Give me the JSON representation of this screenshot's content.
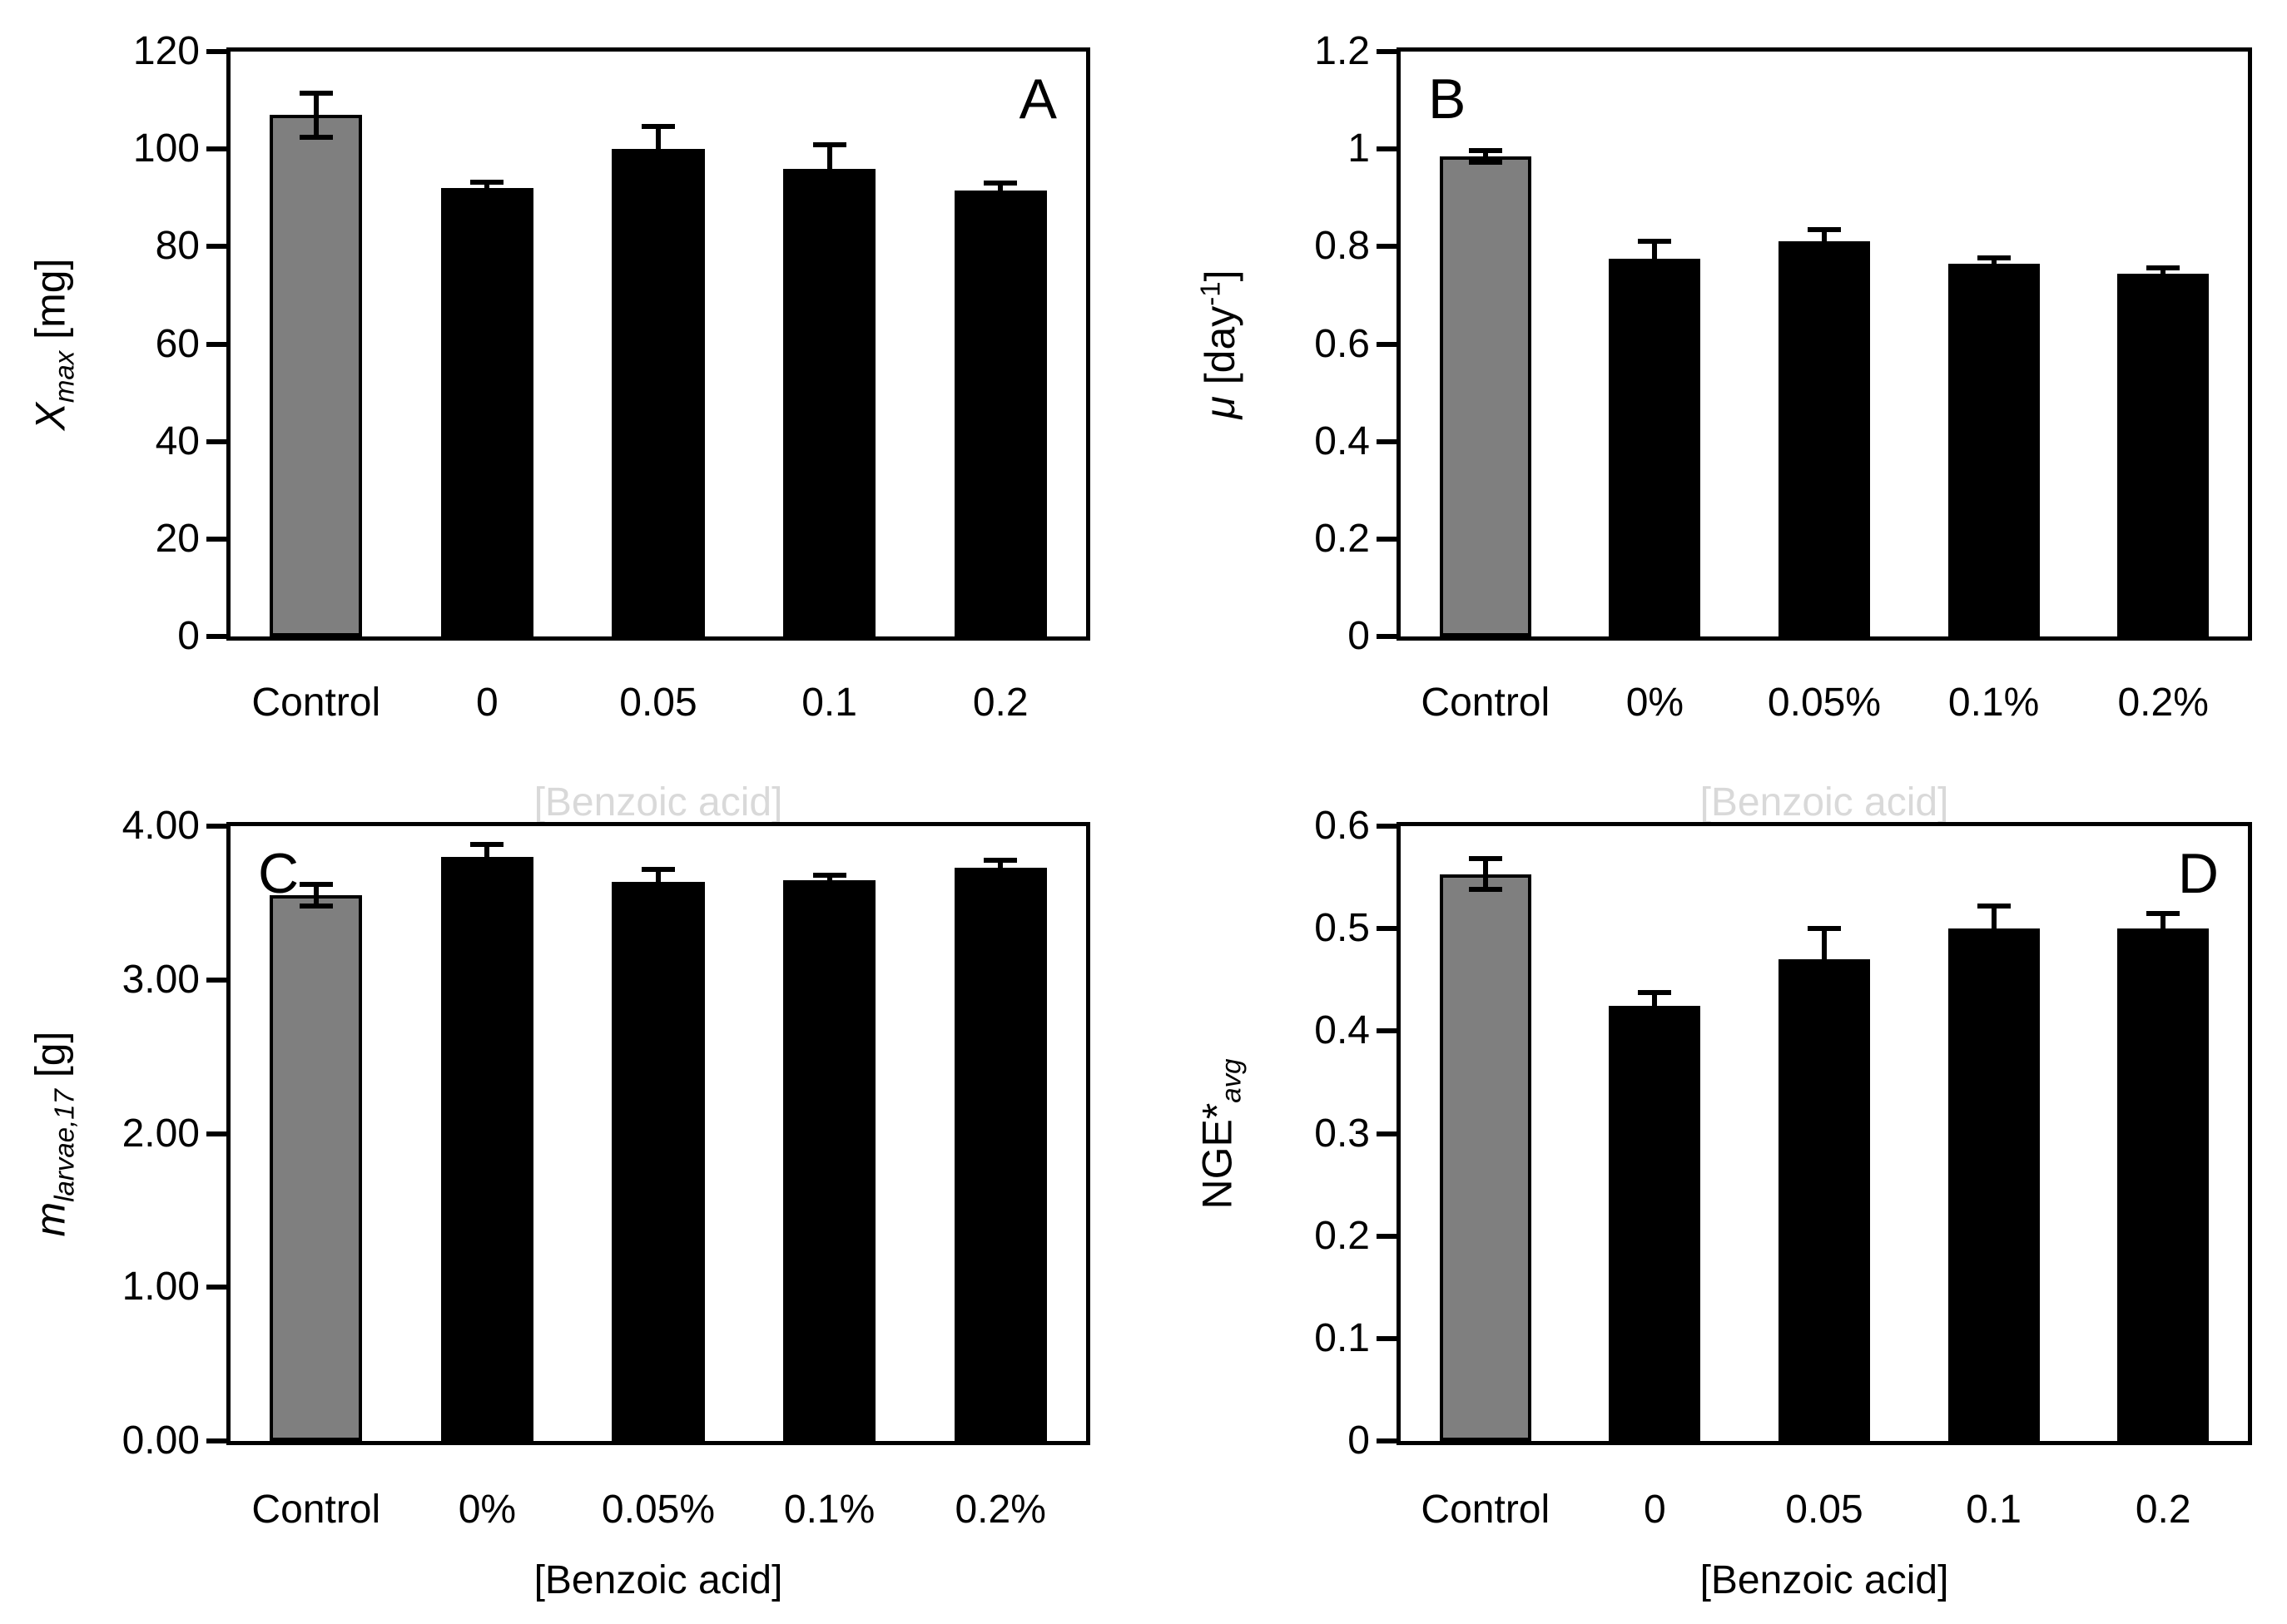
{
  "figure": {
    "background": "#ffffff",
    "style": {
      "control_fill": "#7f7f7f",
      "bar_fill": "#000000",
      "axis_color": "#000000",
      "faded_label_color": "#d9d9d9"
    }
  },
  "chart_data": [
    {
      "id": "A",
      "type": "bar",
      "panel_letter": "A",
      "letter_pos": "top-right",
      "ylabel_segments": [
        {
          "text": "X",
          "italic": true
        },
        {
          "text": "max",
          "italic": true,
          "sub": true
        },
        {
          "text": " [mg]"
        }
      ],
      "ylim": [
        0,
        120
      ],
      "ytick_labels": [
        "0",
        "20",
        "40",
        "60",
        "80",
        "100",
        "120"
      ],
      "categories": [
        "Control",
        "0",
        "0.05",
        "0.1",
        "0.2"
      ],
      "values": [
        107,
        92,
        100,
        96,
        91.5
      ],
      "errors": [
        4.5,
        1.2,
        4.6,
        4.8,
        1.5
      ],
      "control_index": 0,
      "xlabel": "[Benzoic acid]",
      "xlabel_faded": true,
      "grid": false,
      "legend": "none"
    },
    {
      "id": "B",
      "type": "bar",
      "panel_letter": "B",
      "letter_pos": "top-left",
      "ylabel_segments": [
        {
          "text": "μ",
          "italic": true
        },
        {
          "text": " [day"
        },
        {
          "text": "-1",
          "sup": true
        },
        {
          "text": "]"
        }
      ],
      "ylim": [
        0,
        1.2
      ],
      "ytick_labels": [
        "0",
        "0.2",
        "0.4",
        "0.6",
        "0.8",
        "1",
        "1.2"
      ],
      "categories": [
        "Control",
        "0%",
        "0.05%",
        "0.1%",
        "0.2%"
      ],
      "values": [
        0.985,
        0.775,
        0.81,
        0.765,
        0.745
      ],
      "errors": [
        0.012,
        0.035,
        0.025,
        0.012,
        0.012
      ],
      "control_index": 0,
      "xlabel": "[Benzoic acid]",
      "xlabel_faded": true,
      "grid": false,
      "legend": "none"
    },
    {
      "id": "C",
      "type": "bar",
      "panel_letter": "C",
      "letter_pos": "top-left",
      "ylabel_segments": [
        {
          "text": "m",
          "italic": true
        },
        {
          "text": "larvae,17",
          "italic": true,
          "sub": true
        },
        {
          "text": " [g]"
        }
      ],
      "ylim": [
        0,
        4
      ],
      "ytick_labels": [
        "0.00",
        "1.00",
        "2.00",
        "3.00",
        "4.00"
      ],
      "categories": [
        "Control",
        "0%",
        "0.05%",
        "0.1%",
        "0.2%"
      ],
      "values": [
        3.55,
        3.8,
        3.64,
        3.65,
        3.73
      ],
      "errors": [
        0.07,
        0.08,
        0.08,
        0.03,
        0.05
      ],
      "control_index": 0,
      "xlabel": "[Benzoic acid]",
      "xlabel_faded": false,
      "grid": false,
      "legend": "none"
    },
    {
      "id": "D",
      "type": "bar",
      "panel_letter": "D",
      "letter_pos": "top-right",
      "ylabel_segments": [
        {
          "text": "NGE*"
        },
        {
          "text": "avg",
          "italic": true,
          "sub": true
        }
      ],
      "ylim": [
        0,
        0.6
      ],
      "ytick_labels": [
        "0",
        "0.1",
        "0.2",
        "0.3",
        "0.4",
        "0.5",
        "0.6"
      ],
      "categories": [
        "Control",
        "0",
        "0.05",
        "0.1",
        "0.2"
      ],
      "values": [
        0.553,
        0.425,
        0.47,
        0.5,
        0.5
      ],
      "errors": [
        0.015,
        0.013,
        0.03,
        0.022,
        0.015
      ],
      "control_index": 0,
      "xlabel": "[Benzoic acid]",
      "xlabel_faded": false,
      "grid": false,
      "legend": "none"
    }
  ]
}
